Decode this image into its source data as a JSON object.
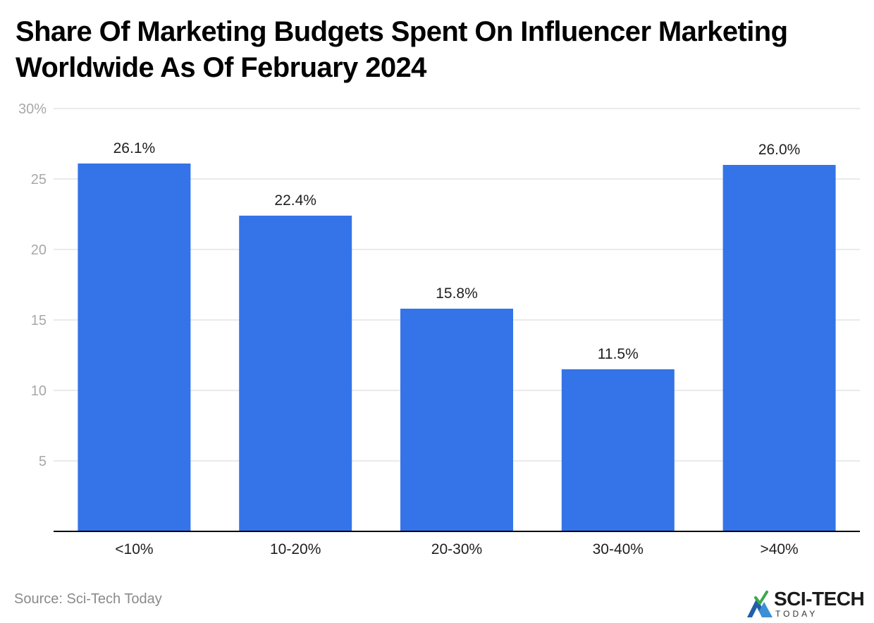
{
  "title_lines": [
    "Share Of Marketing Budgets Spent On Influencer Marketing",
    "Worldwide As Of February 2024"
  ],
  "source": "Source: Sci-Tech Today",
  "logo": {
    "brand": "SCI-TECH",
    "sub": "TODAY",
    "icon": "mountain-check-logo-icon"
  },
  "colors": {
    "bar": "#3474e8",
    "grid": "#e4e4e4",
    "axis": "#000000",
    "tick": "#a8a8a8",
    "label": "#1f1f1f"
  },
  "chart_data": {
    "type": "bar",
    "categories": [
      "<10%",
      "10-20%",
      "20-30%",
      "30-40%",
      ">40%"
    ],
    "values": [
      26.1,
      22.4,
      15.8,
      11.5,
      26.0
    ],
    "data_labels": [
      "26.1%",
      "22.4%",
      "15.8%",
      "11.5%",
      "26.0%"
    ],
    "title": "Share Of Marketing Budgets Spent On Influencer Marketing Worldwide As Of February 2024",
    "ylim": [
      0,
      30
    ],
    "y_ticks": [
      5,
      10,
      15,
      20,
      25,
      30
    ],
    "y_tick_labels": [
      "5",
      "10",
      "15",
      "20",
      "25",
      "30%"
    ],
    "grid": true,
    "legend": "none"
  }
}
